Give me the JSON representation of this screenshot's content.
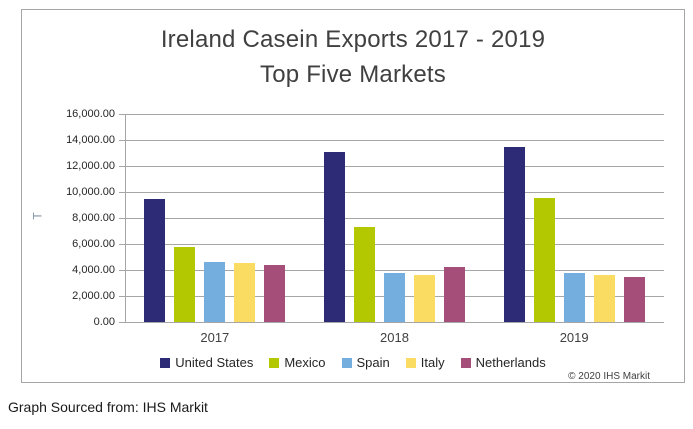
{
  "title": {
    "line1": "Ireland Casein Exports 2017 - 2019",
    "line2": "Top Five Markets"
  },
  "source_note": "Graph Sourced from: IHS Markit",
  "copyright": "© 2020 IHS Markit",
  "chart_data": {
    "type": "bar",
    "title": "Ireland Casein Exports 2017 - 2019 Top Five Markets",
    "categories": [
      "2017",
      "2018",
      "2019"
    ],
    "series": [
      {
        "name": "United States",
        "color": "#2d2b76",
        "values": [
          9500,
          13050,
          13500
        ]
      },
      {
        "name": "Mexico",
        "color": "#b3c800",
        "values": [
          5750,
          7300,
          9550
        ]
      },
      {
        "name": "Spain",
        "color": "#74aede",
        "values": [
          4600,
          3800,
          3800
        ]
      },
      {
        "name": "Italy",
        "color": "#fadc63",
        "values": [
          4550,
          3650,
          3600
        ]
      },
      {
        "name": "Netherlands",
        "color": "#a44e79",
        "values": [
          4350,
          4200,
          3500
        ]
      }
    ],
    "xlabel": "",
    "ylabel": "T",
    "ylim": [
      0,
      16000
    ],
    "ytick_step": 2000,
    "ytick_labels": [
      "0.00",
      "2,000.00",
      "4,000.00",
      "6,000.00",
      "8,000.00",
      "10,000.00",
      "12,000.00",
      "14,000.00",
      "16,000.00"
    ],
    "grid": true,
    "legend_position": "bottom"
  },
  "style_colors": {
    "border": "#a6a6a6",
    "gridline": "#a6a6a6",
    "title_text": "#404040",
    "axis_text": "#262626",
    "y_axis_title_text": "#8496ad"
  }
}
